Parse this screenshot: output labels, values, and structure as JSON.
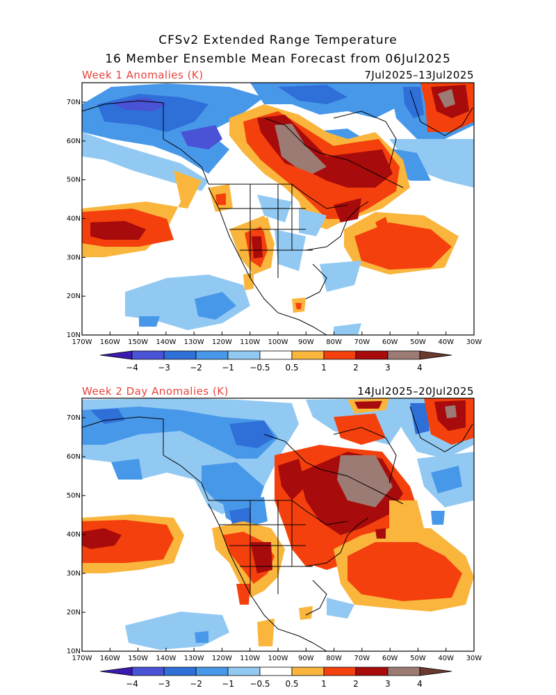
{
  "header": {
    "title_line1": "CFSv2 Extended Range Temperature",
    "title_line2": "16 Member Ensemble Mean Forecast from 06Jul2025"
  },
  "panels": [
    {
      "label": "Week 1 Anomalies (K)",
      "dates": "7Jul2025–13Jul2025"
    },
    {
      "label": "Week 2 Day Anomalies (K)",
      "dates": "14Jul2025–20Jul2025"
    }
  ],
  "axes": {
    "lat_labels": [
      "70N",
      "60N",
      "50N",
      "40N",
      "30N",
      "20N",
      "10N"
    ],
    "lon_labels": [
      "170W",
      "160W",
      "150W",
      "140W",
      "130W",
      "120W",
      "110W",
      "100W",
      "90W",
      "80W",
      "70W",
      "60W",
      "50W",
      "40W",
      "30W"
    ]
  },
  "colorbar": {
    "labels": [
      "−4",
      "−3",
      "−2",
      "−1",
      "−0.5",
      "0.5",
      "1",
      "2",
      "3",
      "4"
    ],
    "colors": [
      "#3a1ab0",
      "#4a52d6",
      "#2f6fd8",
      "#4898ea",
      "#92c9f2",
      "#ffffff",
      "#f9b53c",
      "#f4400c",
      "#a80b0b",
      "#9c7b74",
      "#6a3a2e"
    ]
  }
}
